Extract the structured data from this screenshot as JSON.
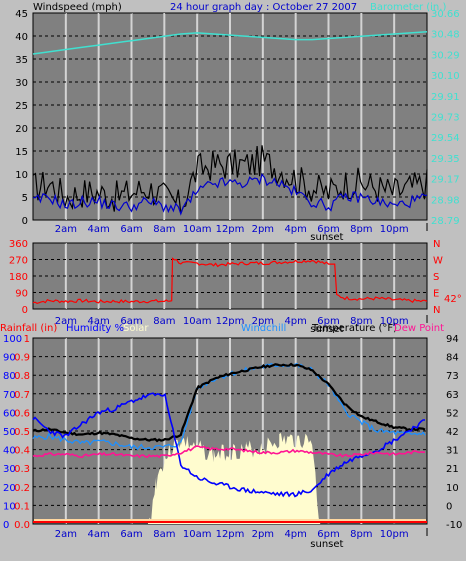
{
  "colors": {
    "background": "#c0c0c0",
    "plot": "#808080",
    "grid": "#d4d4d4",
    "windspeed": "#000000",
    "gust": "#000000",
    "wind_avg": "#0000cc",
    "barometer": "#40e0d0",
    "wind_direction": "#ff0000",
    "humidity": "#0000ff",
    "windchill": "#1e90ff",
    "temperature": "#000000",
    "dew_point": "#ff1493",
    "solar": "#fffccf",
    "rainfall": "#ff0000"
  },
  "header": {
    "windspeed_label": "Windspeed (mph)",
    "title": "24 hour graph day : October 27 2007",
    "barometer_label": "Barometer (in.)"
  },
  "time_axis": {
    "ticks": [
      "2am",
      "4am",
      "6am",
      "8am",
      "10am",
      "12pm",
      "2pm",
      "4pm",
      "6pm",
      "8pm",
      "10pm"
    ],
    "sunset_label": "sunset"
  },
  "chart_data": [
    {
      "type": "line",
      "panel": "wind_barometer",
      "title": "24 hour graph day : October 27 2007",
      "xlabel": "",
      "x_hours": [
        0,
        1,
        2,
        3,
        4,
        5,
        6,
        7,
        8,
        9,
        10,
        11,
        12,
        13,
        14,
        15,
        16,
        17,
        18,
        19,
        20,
        21,
        22,
        23,
        24
      ],
      "ylabel_left": "Windspeed (mph)",
      "ylim_left": [
        0,
        45
      ],
      "yticks_left": [
        "0",
        "5",
        "10",
        "15",
        "20",
        "25",
        "30",
        "35",
        "40",
        "45"
      ],
      "ylabel_right": "Barometer (in.)",
      "ylim_right": [
        28.79,
        30.66
      ],
      "yticks_right": [
        "28.79",
        "28.98",
        "29.17",
        "29.35",
        "29.54",
        "29.73",
        "29.91",
        "30.10",
        "30.29",
        "30.48",
        "30.66"
      ],
      "series": [
        {
          "values": [
            7,
            8,
            5,
            6,
            6,
            5,
            6,
            7,
            5,
            3,
            11,
            12,
            12,
            12,
            13,
            11,
            9,
            7,
            6,
            8,
            8,
            7,
            6,
            7,
            8
          ]
        },
        {
          "values": [
            4,
            5,
            3,
            4,
            4,
            3,
            3,
            4,
            3,
            2,
            6,
            8,
            8,
            8,
            9,
            8,
            6,
            4,
            3,
            5,
            5,
            4,
            3,
            4,
            5
          ]
        },
        {
          "axis": "right",
          "values": [
            30.29,
            30.31,
            30.33,
            30.35,
            30.37,
            30.39,
            30.41,
            30.43,
            30.45,
            30.47,
            30.48,
            30.47,
            30.46,
            30.45,
            30.44,
            30.43,
            30.42,
            30.42,
            30.43,
            30.44,
            30.45,
            30.46,
            30.47,
            30.48,
            30.49
          ]
        }
      ],
      "grid": true
    },
    {
      "type": "line",
      "panel": "wind_direction",
      "yticks_left": [
        "0",
        "90",
        "180",
        "270",
        "360"
      ],
      "ylim_left": [
        0,
        360
      ],
      "labels_right": [
        "N",
        "W",
        "S",
        "E",
        "N"
      ],
      "annotation": "42°",
      "x_hours": [
        0,
        1,
        2,
        3,
        4,
        5,
        6,
        7,
        8,
        8.45,
        8.5,
        9,
        10,
        11,
        12,
        13,
        14,
        15,
        16,
        17,
        18,
        18.5,
        19,
        20,
        21,
        22,
        23,
        24
      ],
      "series": [
        {
          "values": [
            35,
            45,
            42,
            45,
            40,
            42,
            40,
            43,
            42,
            45,
            280,
            250,
            250,
            240,
            245,
            250,
            250,
            255,
            260,
            265,
            245,
            75,
            60,
            55,
            58,
            50,
            45,
            42
          ]
        }
      ],
      "grid": true
    },
    {
      "type": "line",
      "panel": "temperature_humidity",
      "legend": [
        "Rainfall (in)",
        "Humidity %",
        "Solar",
        "Windchill",
        "Temperature (°F)",
        "Dew Point"
      ],
      "ylabel_left_blue": "Humidity %",
      "yticks_left_blue": [
        "0",
        "10",
        "20",
        "30",
        "40",
        "50",
        "60",
        "70",
        "80",
        "90",
        "100"
      ],
      "ylim_left_blue": [
        0,
        100
      ],
      "ylabel_left_red": "Rainfall (in)",
      "yticks_left_red": [
        "0.0",
        "0.1",
        "0.2",
        "0.3",
        "0.4",
        "0.5",
        "0.6",
        "0.7",
        "0.8",
        "0.9",
        "1"
      ],
      "ylim_left_red": [
        0,
        1
      ],
      "ylabel_right": "Temperature (°F)",
      "yticks_right": [
        "-10",
        "0",
        "10",
        "21",
        "31",
        "42",
        "52",
        "63",
        "73",
        "84",
        "94"
      ],
      "ylim_right": [
        -10,
        94
      ],
      "x_hours": [
        0,
        1,
        2,
        3,
        4,
        5,
        6,
        7,
        8,
        9,
        10,
        11,
        12,
        13,
        14,
        15,
        16,
        17,
        18,
        19,
        20,
        21,
        22,
        23,
        24
      ],
      "series": [
        {
          "values": [
            42,
            43,
            41,
            40,
            41,
            40,
            38,
            37,
            37,
            40,
            66,
            71,
            74,
            76,
            78,
            79,
            79,
            76,
            68,
            57,
            50,
            47,
            44,
            43,
            43
          ]
        },
        {
          "values": [
            38,
            39,
            37,
            35,
            36,
            35,
            33,
            33,
            33,
            35,
            66,
            71,
            74,
            76,
            78,
            79,
            79,
            76,
            68,
            53,
            47,
            42,
            41,
            40,
            41
          ]
        },
        {
          "values": [
            57,
            50,
            47,
            54,
            60,
            62,
            66,
            69,
            70,
            32,
            25,
            22,
            20,
            18,
            17,
            16,
            16,
            18,
            27,
            33,
            37,
            40,
            45,
            51,
            56
          ]
        },
        {
          "values": [
            28,
            29,
            29,
            28,
            29,
            29,
            28,
            28,
            28,
            30,
            33,
            32,
            32,
            31,
            30,
            30,
            31,
            30,
            29,
            28,
            29,
            30,
            29,
            30,
            31
          ]
        },
        {
          "values": [
            0,
            0,
            0,
            0,
            0,
            0,
            0,
            0,
            0,
            0,
            0,
            0,
            0,
            0,
            0,
            0,
            0,
            0,
            0,
            0,
            0,
            0,
            0,
            0,
            0
          ]
        }
      ],
      "solar_area": {
        "x_hours": [
          7,
          7.5,
          8,
          8.5,
          9,
          10,
          11,
          12,
          13,
          14,
          15,
          16,
          17,
          17.5
        ],
        "values": [
          0,
          28,
          40,
          46,
          50,
          46,
          42,
          44,
          45,
          46,
          50,
          50,
          50,
          0
        ]
      },
      "grid": true
    }
  ]
}
